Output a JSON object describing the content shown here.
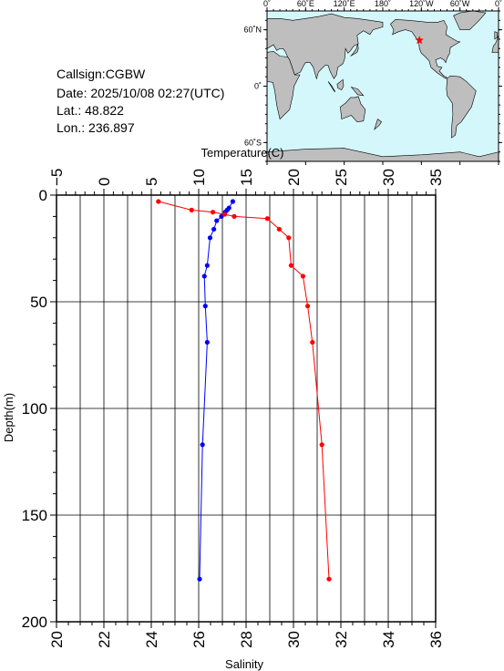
{
  "info": {
    "callsign": "Callsign:CGBW",
    "date": "Date:  2025/10/08 02:27(UTC)",
    "lat": "Lat.:  48.822",
    "lon": "Lon.:  236.897"
  },
  "map": {
    "lon_labels": [
      "0˚",
      "60˚E",
      "120˚E",
      "180˚",
      "120˚W",
      "60˚W",
      "0˚"
    ],
    "lat_labels": [
      "60˚N",
      "0˚",
      "60˚S"
    ],
    "ocean_color": "#d4f7fb",
    "land_color": "#bebebe",
    "station_marker_color": "#ff0000",
    "station_lat": 48.822,
    "station_lon": 236.897
  },
  "chart_data": {
    "type": "line",
    "top_axis_label": "Temperature(C)",
    "bottom_axis_label": "Salinity",
    "ylabel": "Depth(m)",
    "temperature_ticks": [
      "−5",
      "0",
      "5",
      "10",
      "15",
      "20",
      "25",
      "30",
      "35"
    ],
    "salinity_ticks": [
      "20",
      "22",
      "24",
      "26",
      "28",
      "30",
      "32",
      "34",
      "36"
    ],
    "depth_ticks": [
      "0",
      "50",
      "100",
      "150",
      "200"
    ],
    "temperature_lim": [
      -5,
      35
    ],
    "salinity_lim": [
      20,
      36
    ],
    "depth_lim": [
      0,
      200
    ],
    "grid": true,
    "series": [
      {
        "axis": "temperature",
        "color": "#0000ff",
        "points": [
          {
            "x": 13.6,
            "depth": 3
          },
          {
            "x": 13.2,
            "depth": 6
          },
          {
            "x": 13.0,
            "depth": 7
          },
          {
            "x": 12.8,
            "depth": 8
          },
          {
            "x": 12.4,
            "depth": 10
          },
          {
            "x": 11.9,
            "depth": 12
          },
          {
            "x": 11.6,
            "depth": 16
          },
          {
            "x": 11.2,
            "depth": 20
          },
          {
            "x": 10.9,
            "depth": 33
          },
          {
            "x": 10.6,
            "depth": 38
          },
          {
            "x": 10.7,
            "depth": 52
          },
          {
            "x": 10.9,
            "depth": 69
          },
          {
            "x": 10.4,
            "depth": 117
          },
          {
            "x": 10.1,
            "depth": 180
          }
        ]
      },
      {
        "axis": "salinity",
        "color": "#ff0000",
        "points": [
          {
            "x": 24.3,
            "depth": 3
          },
          {
            "x": 25.7,
            "depth": 7
          },
          {
            "x": 26.6,
            "depth": 8
          },
          {
            "x": 27.1,
            "depth": 9
          },
          {
            "x": 27.5,
            "depth": 10
          },
          {
            "x": 28.9,
            "depth": 11
          },
          {
            "x": 29.4,
            "depth": 16
          },
          {
            "x": 29.8,
            "depth": 20
          },
          {
            "x": 29.9,
            "depth": 33
          },
          {
            "x": 30.4,
            "depth": 38
          },
          {
            "x": 30.6,
            "depth": 52
          },
          {
            "x": 30.8,
            "depth": 69
          },
          {
            "x": 31.2,
            "depth": 117
          },
          {
            "x": 31.5,
            "depth": 180
          }
        ]
      }
    ]
  }
}
